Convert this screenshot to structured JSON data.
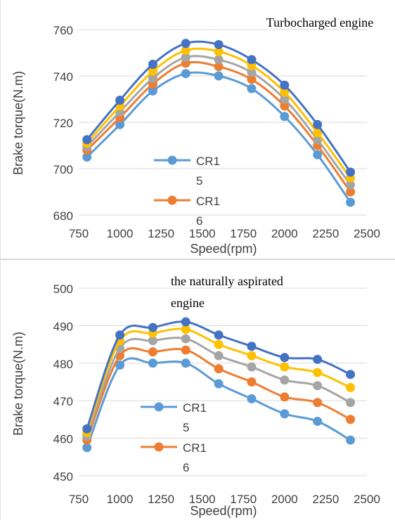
{
  "chart_data": [
    {
      "type": "line",
      "title": "Turbocharged engine",
      "xlabel": "Speed(rpm)",
      "ylabel": "Brake torque(N.m)",
      "xlim": [
        750,
        2500
      ],
      "ylim": [
        680,
        760
      ],
      "xticks": [
        750,
        1000,
        1250,
        1500,
        1750,
        2000,
        2250,
        2500
      ],
      "yticks": [
        680,
        700,
        720,
        740,
        760
      ],
      "legend": [
        "CR1",
        "5",
        "CR1",
        "6"
      ],
      "legend_position": "center",
      "grid": true,
      "x": [
        800,
        1000,
        1200,
        1400,
        1600,
        1800,
        2000,
        2200,
        2400
      ],
      "series": [
        {
          "name": "CR15",
          "color": "#5b9bd5",
          "values": [
            705,
            719,
            733.5,
            741,
            740,
            734.5,
            722.5,
            706,
            685.5
          ]
        },
        {
          "name": "CR16",
          "color": "#ed7d31",
          "values": [
            708,
            722,
            736.5,
            745.5,
            744,
            738.5,
            727,
            710,
            690
          ]
        },
        {
          "name": "",
          "color": "#a5a5a5",
          "values": [
            709.5,
            724.5,
            739,
            748,
            747,
            741.5,
            730,
            712.5,
            693
          ]
        },
        {
          "name": "",
          "color": "#ffc000",
          "values": [
            711,
            727,
            742,
            751,
            750.5,
            744.5,
            733,
            715.5,
            696
          ]
        },
        {
          "name": "",
          "color": "#4472c4",
          "values": [
            712.5,
            729.5,
            745,
            754,
            753.5,
            747,
            736,
            719,
            698.5
          ]
        }
      ]
    },
    {
      "type": "line",
      "title": "the naturally aspirated engine",
      "title_lines": [
        "the naturally aspirated",
        "engine"
      ],
      "xlabel": "Speed(rpm)",
      "ylabel": "Brake torque(N.m)",
      "xlim": [
        750,
        2500
      ],
      "ylim": [
        450,
        500
      ],
      "xticks": [
        750,
        1000,
        1250,
        1500,
        1750,
        2000,
        2250,
        2500
      ],
      "yticks": [
        450,
        460,
        470,
        480,
        490,
        500
      ],
      "legend": [
        "CR1",
        "5",
        "CR1",
        "6"
      ],
      "legend_position": "center-left",
      "grid": true,
      "x": [
        800,
        1000,
        1200,
        1400,
        1600,
        1800,
        2000,
        2200,
        2400
      ],
      "series": [
        {
          "name": "CR15",
          "color": "#5b9bd5",
          "values": [
            457.5,
            479.5,
            480,
            480,
            474.5,
            470.5,
            466.5,
            464.5,
            459.5
          ]
        },
        {
          "name": "CR16",
          "color": "#ed7d31",
          "values": [
            459.5,
            482,
            483,
            483.5,
            478.5,
            475,
            471,
            469.5,
            465
          ]
        },
        {
          "name": "",
          "color": "#a5a5a5",
          "values": [
            460.5,
            484,
            486,
            486.5,
            482,
            479,
            475.5,
            474,
            469.5
          ]
        },
        {
          "name": "",
          "color": "#ffc000",
          "values": [
            461.5,
            486,
            488,
            489,
            485,
            482,
            479,
            477.5,
            473.5
          ]
        },
        {
          "name": "",
          "color": "#4472c4",
          "values": [
            462.5,
            487.5,
            489.5,
            491,
            487.5,
            484.5,
            481.5,
            481,
            477
          ]
        }
      ]
    }
  ]
}
